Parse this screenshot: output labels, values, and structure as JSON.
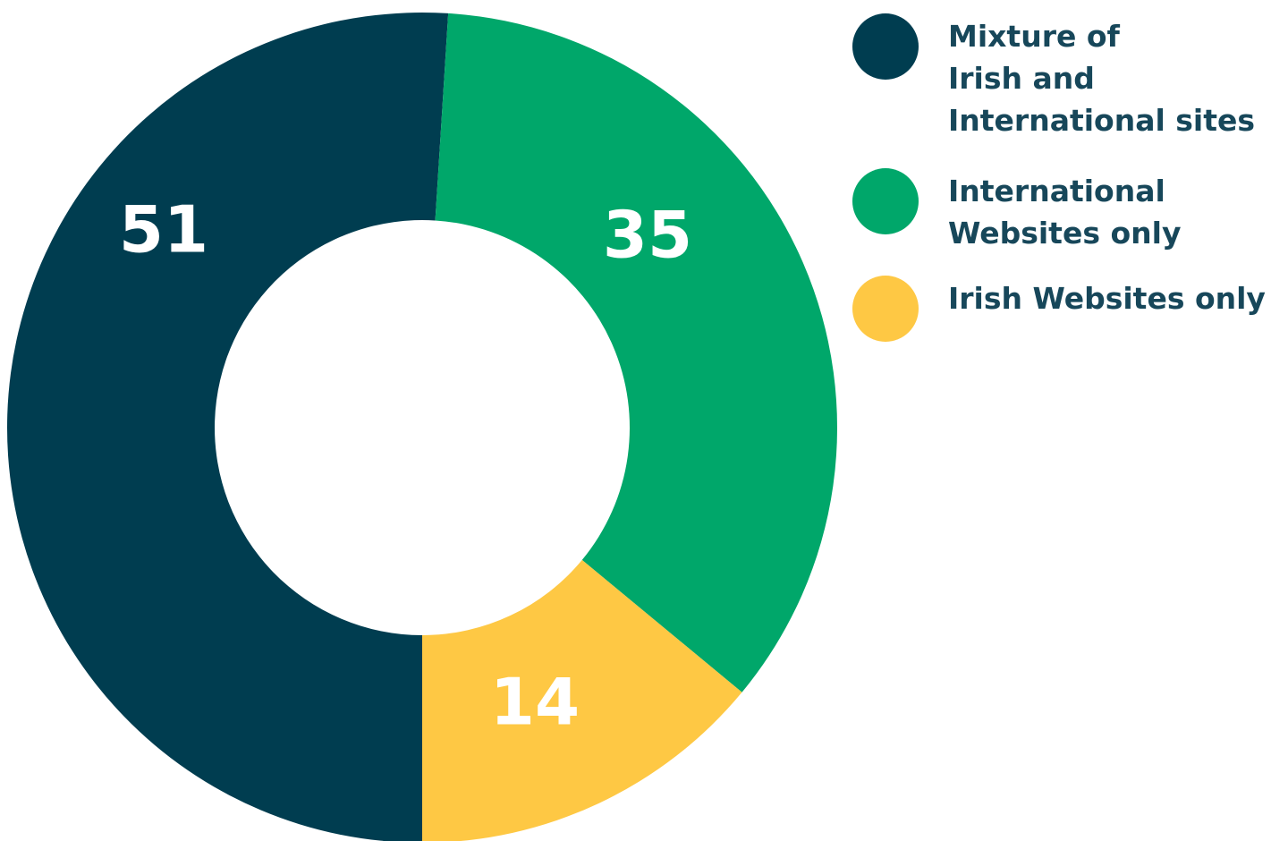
{
  "chart_data": {
    "type": "donut",
    "categories": [
      "Mixture of\nIrish and\nInternational sites",
      "International\nWebsites only",
      "Irish Websites only"
    ],
    "values": [
      51,
      35,
      14
    ],
    "colors": [
      "#003d50",
      "#00a76a",
      "#fec844"
    ]
  }
}
